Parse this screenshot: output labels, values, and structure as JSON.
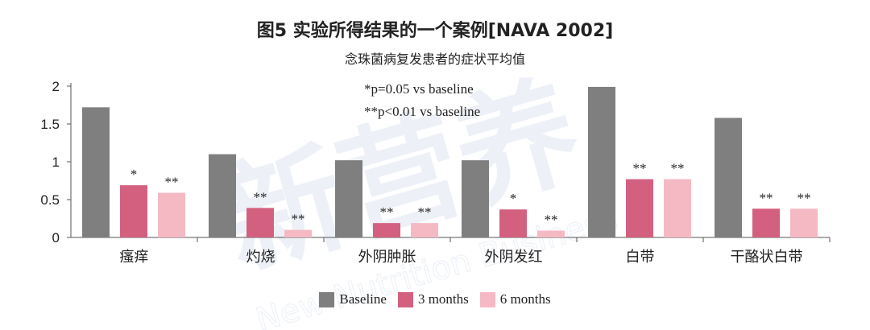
{
  "title": "图5 实验所得结果的一个案例[NAVA 2002]",
  "subtitle": "念珠菌病复发患者的症状平均值",
  "notes": [
    "*p=0.05 vs baseline",
    "**p<0.01 vs baseline"
  ],
  "watermark": {
    "text": "新营养",
    "subtext": "New Nutrition Business",
    "mark": "®"
  },
  "colors": {
    "baseline": "#7f7f7f",
    "three_months": "#d4607f",
    "six_months": "#f5b9c4",
    "watermark": "#9fb6d8"
  },
  "chart_data": {
    "type": "bar",
    "categories": [
      "瘙痒",
      "灼烧",
      "外阴肿胀",
      "外阴发红",
      "白带",
      "干酪状白带"
    ],
    "series": [
      {
        "name": "Baseline",
        "values": [
          1.72,
          1.1,
          1.02,
          1.02,
          1.99,
          1.58
        ],
        "annotations": [
          "",
          "",
          "",
          "",
          "",
          ""
        ]
      },
      {
        "name": "3 months",
        "values": [
          0.69,
          0.39,
          0.19,
          0.37,
          0.77,
          0.38
        ],
        "annotations": [
          "*",
          "**",
          "**",
          "*",
          "**",
          "**"
        ]
      },
      {
        "name": "6 months",
        "values": [
          0.59,
          0.1,
          0.19,
          0.09,
          0.77,
          0.38
        ],
        "annotations": [
          "**",
          "**",
          "**",
          "**",
          "**",
          "**"
        ]
      }
    ],
    "yticks": [
      "0",
      "0.5",
      "1",
      "1.5",
      "2"
    ],
    "ylim": [
      0,
      2
    ],
    "legend_position": "bottom",
    "grid": false
  }
}
